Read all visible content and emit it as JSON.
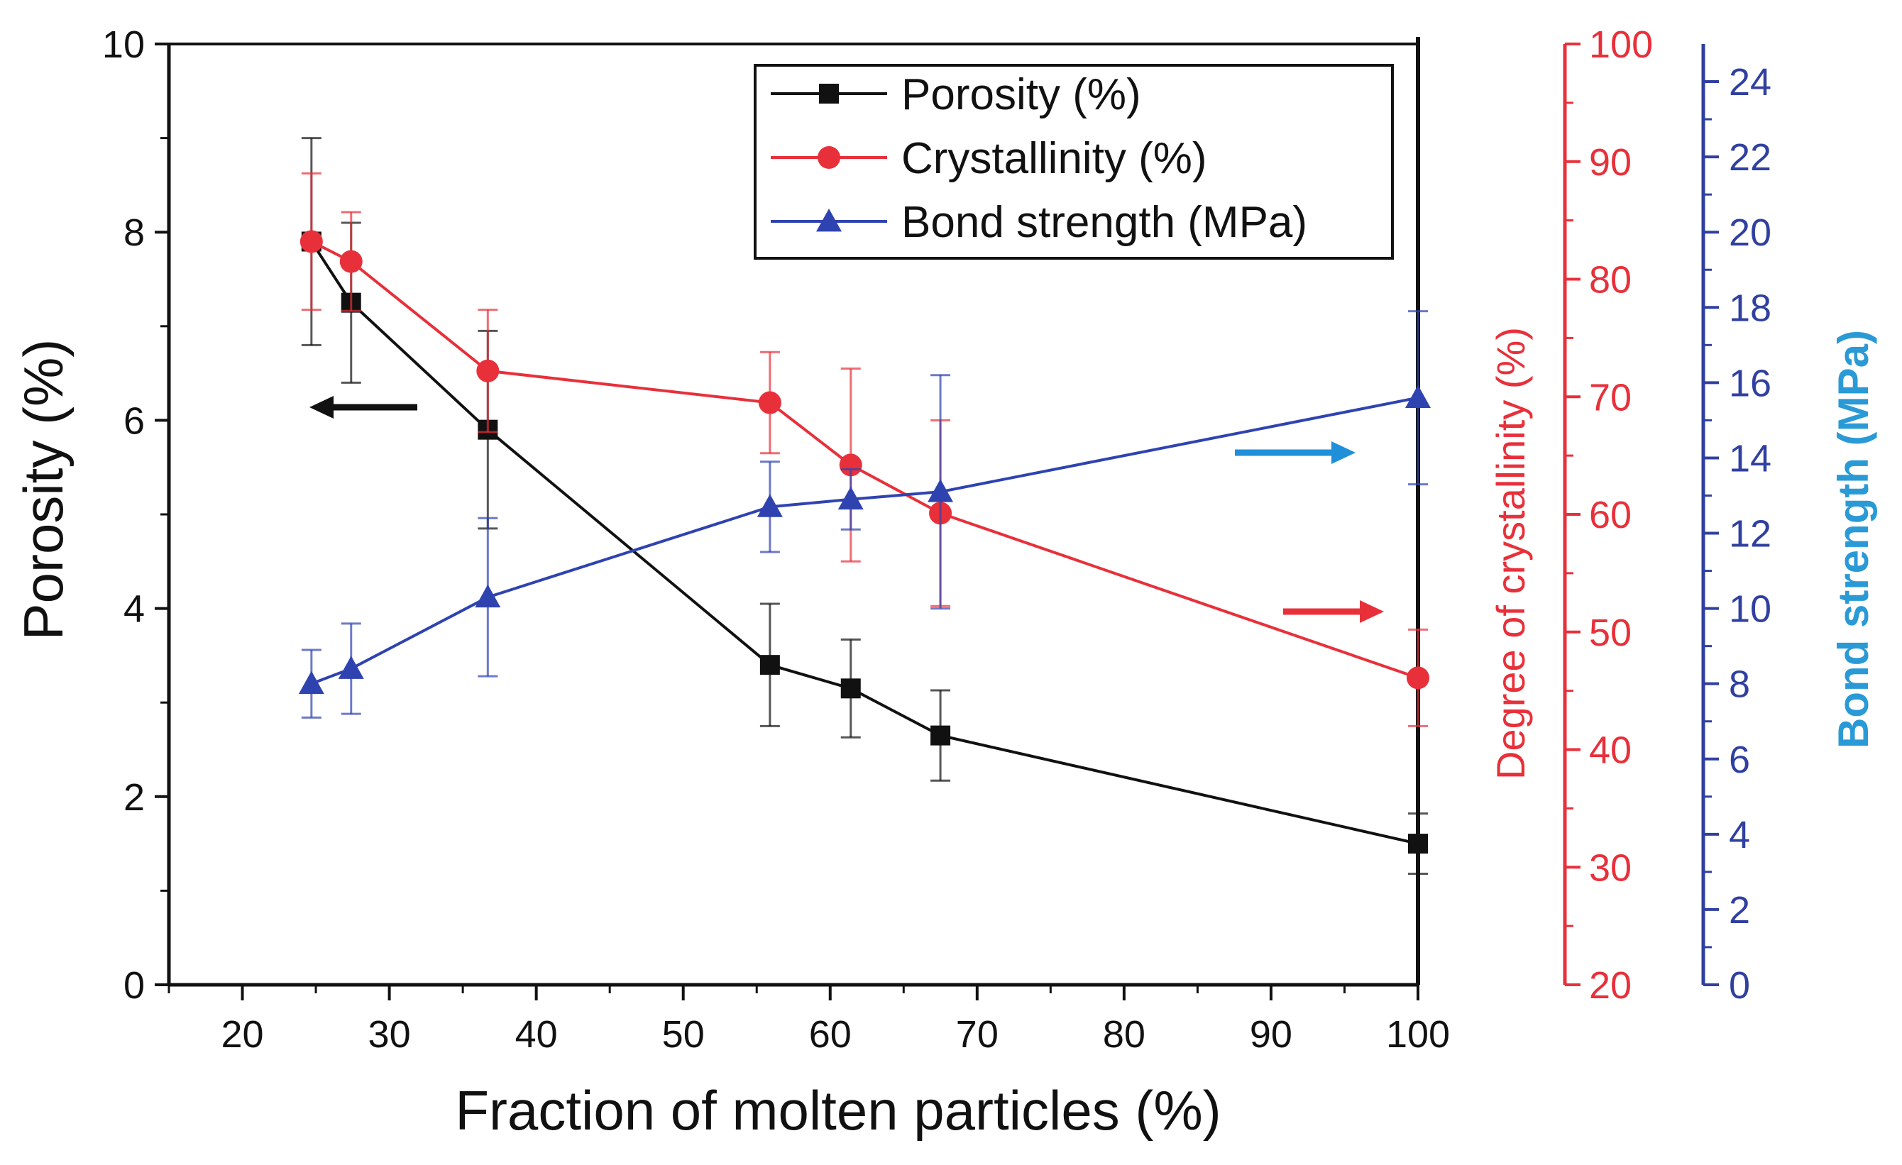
{
  "chart_data": {
    "type": "line",
    "xlabel": "Fraction of molten particles  (%)",
    "x_ticks": [
      20,
      30,
      40,
      50,
      60,
      70,
      80,
      90,
      100
    ],
    "xlim": [
      15,
      100
    ],
    "axes": {
      "left": {
        "label": "Porosity (%)",
        "ylim": [
          0,
          10
        ],
        "ticks": [
          0,
          2,
          4,
          6,
          8,
          10
        ],
        "color": "#111111"
      },
      "right1": {
        "label": "Degree of crystallinity (%)",
        "ylim": [
          20,
          100
        ],
        "ticks": [
          20,
          30,
          40,
          50,
          60,
          70,
          80,
          90,
          100
        ],
        "color": "#e8303a"
      },
      "right2": {
        "label": "Bond strength (MPa)",
        "label_color": "#2a9ad6",
        "ylim": [
          0,
          25
        ],
        "ticks": [
          0,
          2,
          4,
          6,
          8,
          10,
          12,
          14,
          16,
          18,
          20,
          22,
          24
        ],
        "color": "#3040a0"
      }
    },
    "series": [
      {
        "name": "Porosity (%)",
        "axis": "left",
        "marker": "square",
        "color": "#111111",
        "x": [
          24.7,
          27.4,
          36.7,
          55.9,
          61.4,
          67.5,
          100
        ],
        "y": [
          7.9,
          7.25,
          5.9,
          3.4,
          3.15,
          2.65,
          1.5
        ],
        "err": [
          1.1,
          0.85,
          1.05,
          0.65,
          0.52,
          0.48,
          0.32
        ]
      },
      {
        "name": "Crystallinity (%)",
        "axis": "right1",
        "marker": "circle",
        "color": "#e8303a",
        "x": [
          24.7,
          27.4,
          36.7,
          55.9,
          61.4,
          67.5,
          100
        ],
        "y": [
          83.2,
          81.5,
          72.2,
          69.5,
          64.2,
          60.1,
          46.1
        ],
        "err": [
          5.8,
          4.2,
          5.2,
          4.3,
          8.2,
          7.9,
          4.1
        ]
      },
      {
        "name": "Bond strength (MPa)",
        "axis": "right2",
        "marker": "triangle",
        "color": "#2f43b0",
        "x": [
          24.7,
          27.4,
          36.7,
          55.9,
          61.4,
          67.5,
          100
        ],
        "y": [
          8.0,
          8.4,
          10.3,
          12.7,
          12.9,
          13.1,
          15.6
        ],
        "err": [
          0.9,
          1.2,
          2.1,
          1.2,
          0.8,
          3.1,
          2.3
        ]
      }
    ],
    "legend": {
      "position": "top-right",
      "entries": [
        "Porosity (%)",
        "Crystallinity (%)",
        "Bond strength (MPa)"
      ]
    },
    "annotations": [
      {
        "type": "arrow",
        "direction": "left",
        "color": "#111111",
        "meaning": "Porosity axis"
      },
      {
        "type": "arrow",
        "direction": "right",
        "color": "#1e8fd8",
        "meaning": "Bond strength axis"
      },
      {
        "type": "arrow",
        "direction": "right",
        "color": "#e8303a",
        "meaning": "Crystallinity axis"
      }
    ]
  }
}
